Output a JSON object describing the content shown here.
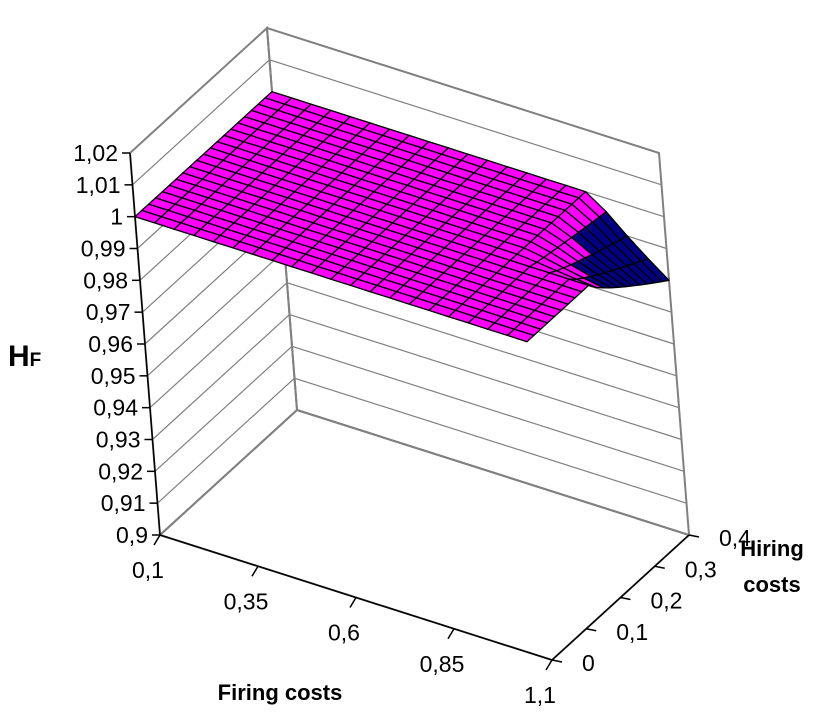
{
  "chart_data": {
    "type": "surface",
    "z_axis": {
      "title": "H",
      "title_subscript": "F",
      "ticks": [
        "1,02",
        "1,01",
        "1",
        "0,99",
        "0,98",
        "0,97",
        "0,96",
        "0,95",
        "0,94",
        "0,93",
        "0,92",
        "0,91",
        "0,9"
      ],
      "range": [
        0.9,
        1.02
      ]
    },
    "x_axis": {
      "title": "Firing costs",
      "ticks": [
        "0,1",
        "0,35",
        "0,6",
        "0,85",
        "1,1"
      ],
      "range": [
        0.1,
        1.1
      ]
    },
    "y_axis": {
      "title_line1": "Hiring",
      "title_line2": "costs",
      "ticks": [
        "0",
        "0,1",
        "0,2",
        "0,3",
        "0,4"
      ],
      "range": [
        0,
        0.4
      ]
    },
    "surface": {
      "plateau_value": 1.0,
      "dip_min_value": 0.98,
      "colors": {
        "plateau": "#ff00ff",
        "dip": "#000080",
        "dip_light": "#ccccff",
        "wire": "#000000",
        "wall": "#808080"
      }
    },
    "grid": true,
    "legend": "none"
  }
}
